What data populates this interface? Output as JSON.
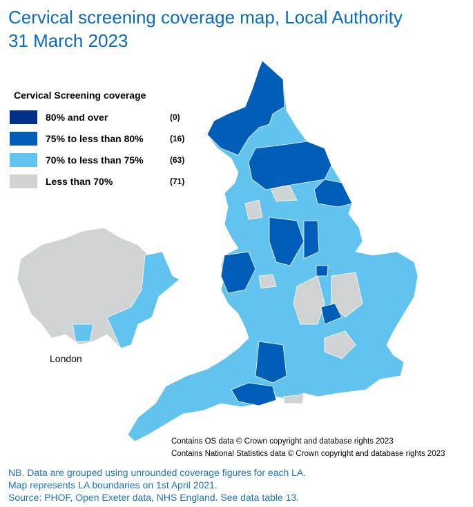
{
  "header": {
    "title_line1": "Cervical  screening coverage map, Local Authority",
    "title_line2": "31 March 2023"
  },
  "legend": {
    "title": "Cervical Screening coverage",
    "items": [
      {
        "label": "80% and over",
        "count": "(0)",
        "color": "#003087"
      },
      {
        "label": "75% to less than 80%",
        "count": "(16)",
        "color": "#005eb8"
      },
      {
        "label": "70% to less than 75%",
        "count": "(63)",
        "color": "#62c3ee"
      },
      {
        "label": "Less than 70%",
        "count": "(71)",
        "color": "#d0d3d4"
      }
    ]
  },
  "inset": {
    "label": "London"
  },
  "credits": [
    "Contains OS data  © Crown copyright and database rights 2023",
    "Contains National Statistics data  © Crown copyright and database rights 2023"
  ],
  "notes": [
    "NB. Data are grouped using unrounded coverage figures for each LA.",
    "Map represents LA boundaries on 1st April 2021.",
    "Source: PHOF, Open Exeter data, NHS England.  See data table 13."
  ]
}
